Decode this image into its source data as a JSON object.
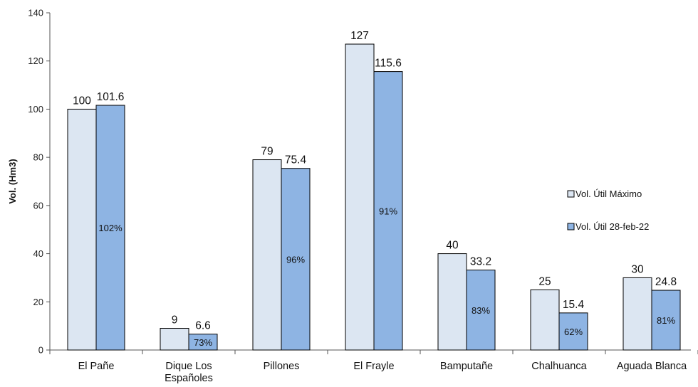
{
  "chart_data": {
    "type": "bar",
    "title": "",
    "ylabel": "Vol. (Hm3)",
    "xlabel": "",
    "ylim": [
      0,
      140
    ],
    "yticks": [
      0,
      20,
      40,
      60,
      80,
      100,
      120,
      140
    ],
    "grid": false,
    "legend_position": "right",
    "categories": [
      [
        "El Pañe"
      ],
      [
        "Dique Los",
        "Españoles"
      ],
      [
        "Pillones"
      ],
      [
        "El Frayle"
      ],
      [
        "Bamputañe"
      ],
      [
        "Chalhuanca"
      ],
      [
        "Aguada Blanca"
      ]
    ],
    "series": [
      {
        "name": "Vol. Útil Máximo",
        "color": "#dce6f2",
        "values": [
          100,
          9,
          79,
          127,
          40,
          25,
          30
        ],
        "labels": [
          "100",
          "9",
          "79",
          "127",
          "40",
          "25",
          "30"
        ]
      },
      {
        "name": "Vol. Útil 28-feb-22",
        "color": "#8eb4e3",
        "values": [
          101.6,
          6.6,
          75.4,
          115.6,
          33.2,
          15.4,
          24.8
        ],
        "labels": [
          "101.6",
          "6.6",
          "75.4",
          "115.6",
          "33.2",
          "15.4",
          "24.8"
        ]
      }
    ],
    "percent_labels": [
      "102%",
      "73%",
      "96%",
      "91%",
      "83%",
      "62%",
      "81%"
    ]
  }
}
